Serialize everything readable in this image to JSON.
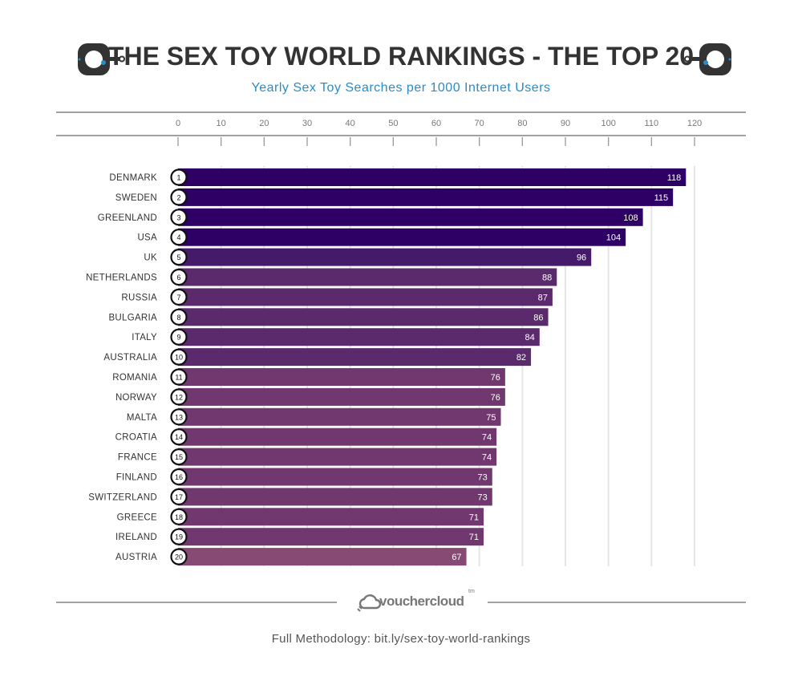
{
  "header": {
    "title": "THE SEX TOY WORLD RANKINGS - THE TOP 20",
    "subtitle": "Yearly Sex Toy Searches per 1000 Internet Users",
    "icon_left": "handcuff-icon",
    "icon_right": "handcuff-icon"
  },
  "chart_data": {
    "type": "bar",
    "orientation": "horizontal",
    "title": "THE SEX TOY WORLD RANKINGS - THE TOP 20",
    "subtitle": "Yearly Sex Toy Searches per 1000 Internet Users",
    "xlim": [
      0,
      120
    ],
    "x_ticks": [
      0,
      10,
      20,
      30,
      40,
      50,
      60,
      70,
      80,
      90,
      100,
      110,
      120
    ],
    "grid": true,
    "categories": [
      "DENMARK",
      "SWEDEN",
      "GREENLAND",
      "USA",
      "UK",
      "NETHERLANDS",
      "RUSSIA",
      "BULGARIA",
      "ITALY",
      "AUSTRALIA",
      "ROMANIA",
      "NORWAY",
      "MALTA",
      "CROATIA",
      "FRANCE",
      "FINLAND",
      "SWITZERLAND",
      "GREECE",
      "IRELAND",
      "AUSTRIA"
    ],
    "ranks": [
      1,
      2,
      3,
      4,
      5,
      6,
      7,
      8,
      9,
      10,
      11,
      12,
      13,
      14,
      15,
      16,
      17,
      18,
      19,
      20
    ],
    "values": [
      118,
      115,
      108,
      104,
      96,
      88,
      87,
      86,
      84,
      82,
      76,
      76,
      75,
      74,
      74,
      73,
      73,
      71,
      71,
      67
    ],
    "bar_colors": [
      "#2e0066",
      "#2e0066",
      "#2e0066",
      "#2e0066",
      "#461a6b",
      "#5b2a6d",
      "#5b2a6d",
      "#5b2a6d",
      "#5b2a6d",
      "#5b2a6d",
      "#71386f",
      "#71386f",
      "#71386f",
      "#71386f",
      "#71386f",
      "#71386f",
      "#71386f",
      "#71386f",
      "#71386f",
      "#874a75"
    ]
  },
  "footer": {
    "logo": "vouchercloud",
    "logo_tm": "tm",
    "methodology": "Full Methodology: bit.ly/sex-toy-world-rankings"
  }
}
